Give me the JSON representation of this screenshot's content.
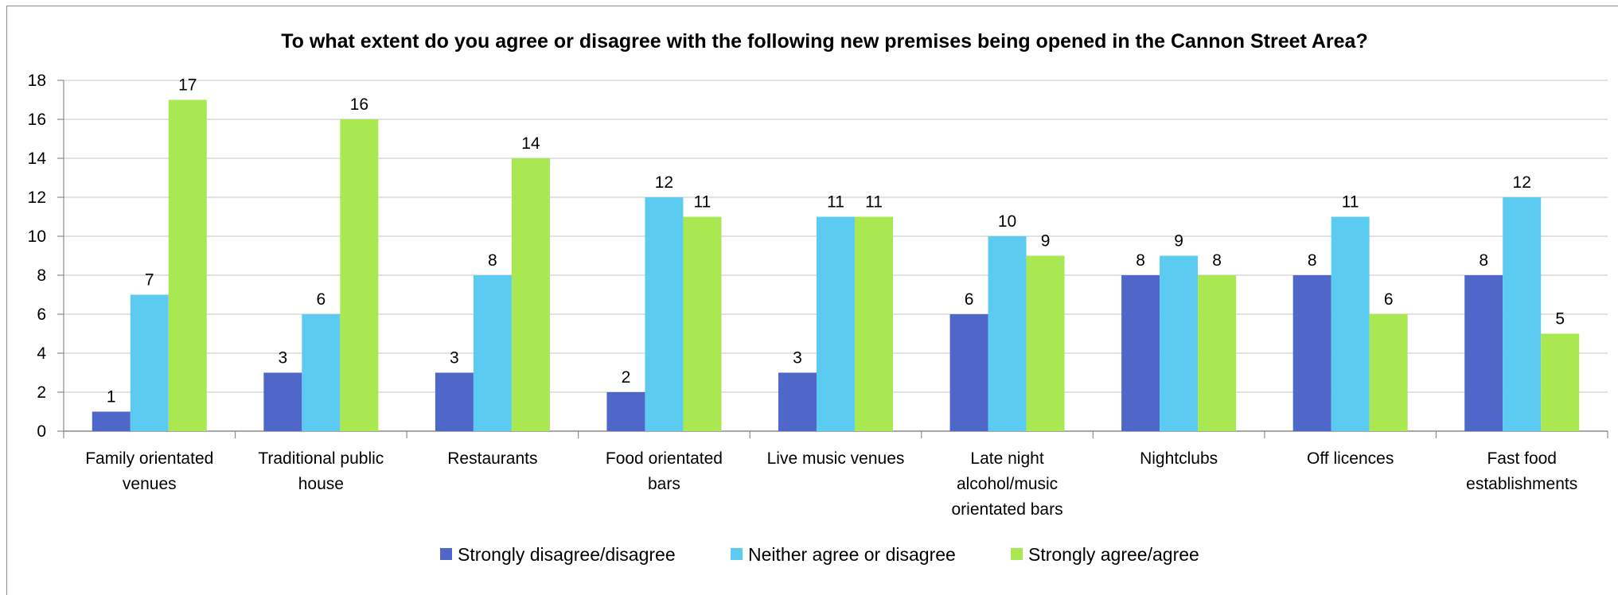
{
  "chart_data": {
    "type": "bar",
    "title": "To what extent do you agree or disagree with the following new premises being opened in the Cannon Street Area?",
    "categories": [
      [
        "Family orientated",
        "venues"
      ],
      [
        "Traditional public",
        "house"
      ],
      [
        "Restaurants"
      ],
      [
        "Food orientated",
        "bars"
      ],
      [
        "Live music venues"
      ],
      [
        "Late night",
        "alcohol/music",
        "orientated bars"
      ],
      [
        "Nightclubs"
      ],
      [
        "Off licences"
      ],
      [
        "Fast food",
        "establishments"
      ]
    ],
    "series": [
      {
        "name": "Strongly disagree/disagree",
        "color": "#4f67c9",
        "values": [
          1,
          3,
          3,
          2,
          3,
          6,
          8,
          8,
          8
        ]
      },
      {
        "name": "Neither agree or disagree",
        "color": "#5ccbf1",
        "values": [
          7,
          6,
          8,
          12,
          11,
          10,
          9,
          11,
          12
        ]
      },
      {
        "name": "Strongly agree/agree",
        "color": "#a9e851",
        "values": [
          17,
          16,
          14,
          11,
          11,
          9,
          8,
          6,
          5
        ]
      }
    ],
    "ylim": [
      0,
      18
    ],
    "yticks": [
      0,
      2,
      4,
      6,
      8,
      10,
      12,
      14,
      16,
      18
    ],
    "grid": true,
    "legend": "bottom"
  }
}
